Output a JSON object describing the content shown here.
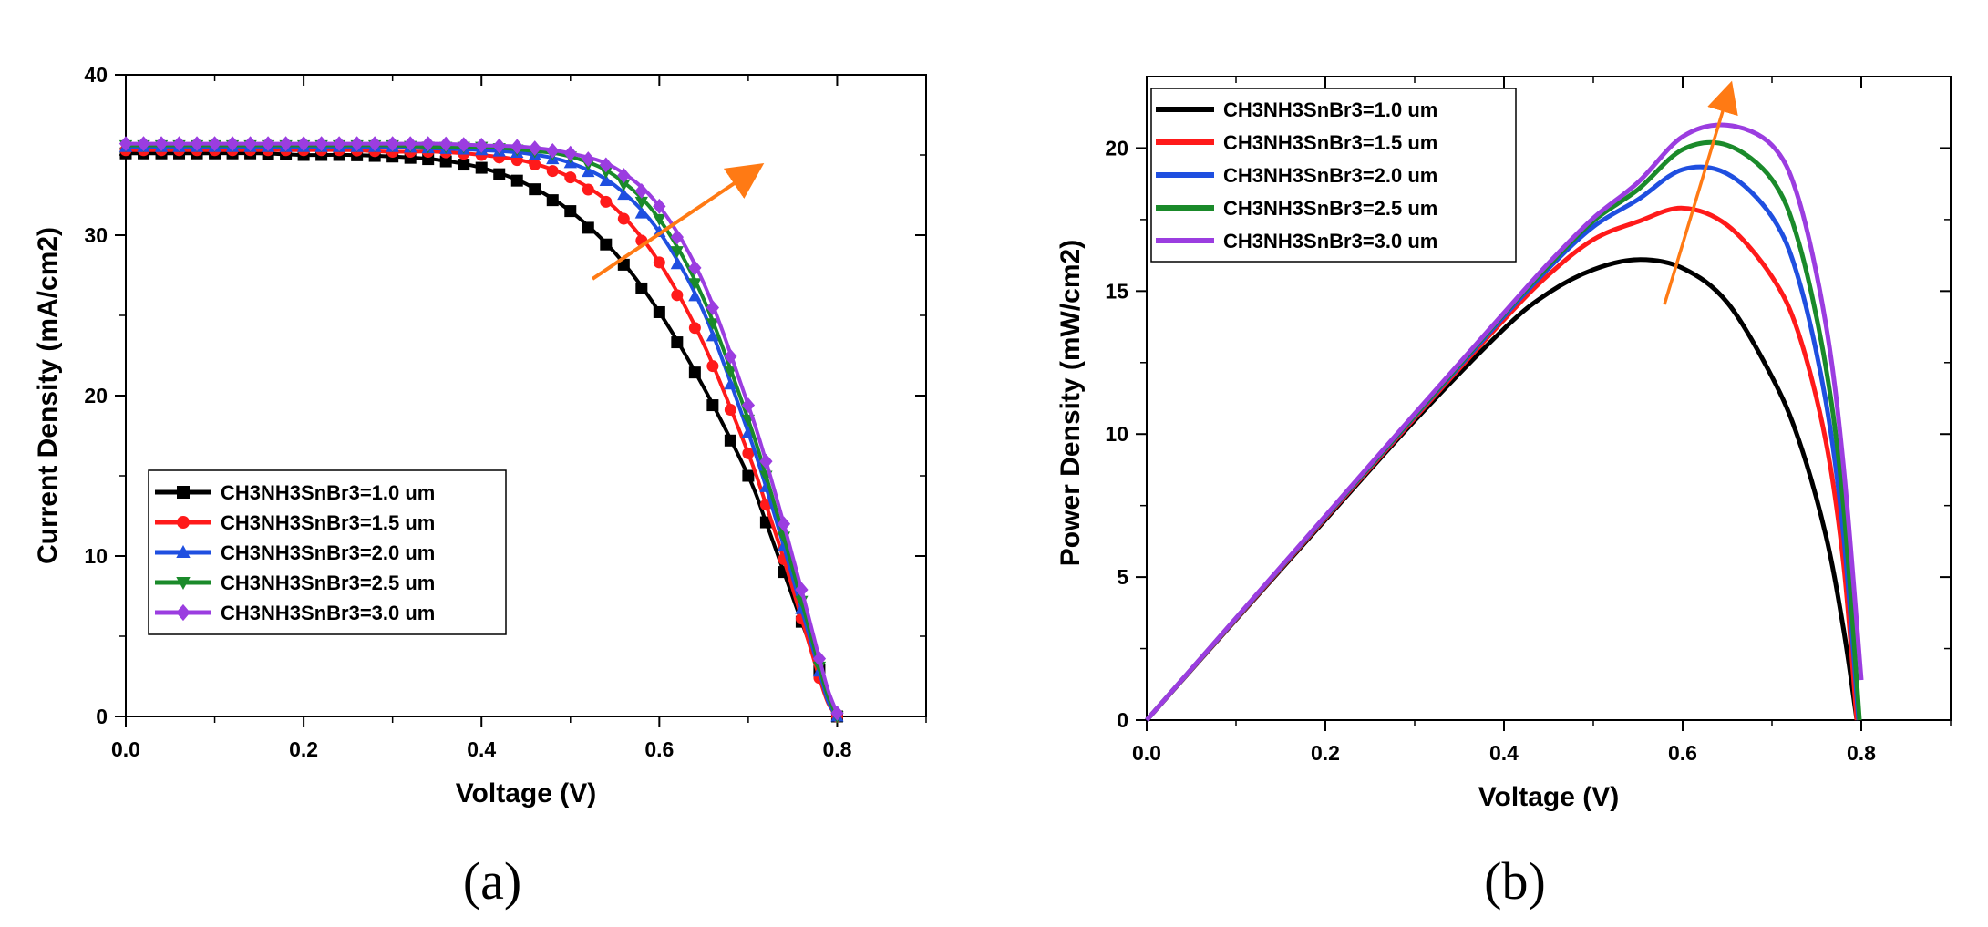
{
  "chart_data": [
    {
      "panel": "(a)",
      "type": "line",
      "xlabel": "Voltage (V)",
      "ylabel": "Current Density (mA/cm2)",
      "xlim": [
        0,
        0.9
      ],
      "ylim": [
        0,
        40
      ],
      "xticks": [
        "0.0",
        "0.2",
        "0.4",
        "0.6",
        "0.8"
      ],
      "yticks": [
        "0",
        "10",
        "20",
        "30",
        "40"
      ],
      "legend_position": "lower-left",
      "annotation": "orange arrow pointing upward-right indicating increasing absorber thickness",
      "x": [
        0.0,
        0.05,
        0.1,
        0.15,
        0.2,
        0.25,
        0.3,
        0.35,
        0.4,
        0.45,
        0.5,
        0.55,
        0.6,
        0.65,
        0.7,
        0.72,
        0.74,
        0.76,
        0.78,
        0.79,
        0.8
      ],
      "series": [
        {
          "name": "CH3NH3SnBr3=1.0 um",
          "color": "#000000",
          "marker": "square",
          "values": [
            35.1,
            35.1,
            35.1,
            35.1,
            35.0,
            35.0,
            34.9,
            34.7,
            34.2,
            33.2,
            31.5,
            28.9,
            25.2,
            20.5,
            15.0,
            12.1,
            9.0,
            5.9,
            2.9,
            1.3,
            0.0
          ]
        },
        {
          "name": "CH3NH3SnBr3=1.5 um",
          "color": "#ff1a1a",
          "marker": "circle",
          "values": [
            35.3,
            35.3,
            35.3,
            35.3,
            35.3,
            35.3,
            35.2,
            35.2,
            35.0,
            34.6,
            33.6,
            31.7,
            28.3,
            23.2,
            16.4,
            13.2,
            9.8,
            6.1,
            2.4,
            0.8,
            0.0
          ]
        },
        {
          "name": "CH3NH3SnBr3=2.0 um",
          "color": "#1f4fe0",
          "marker": "triangle-up",
          "values": [
            35.5,
            35.5,
            35.5,
            35.5,
            35.5,
            35.5,
            35.5,
            35.4,
            35.3,
            35.1,
            34.5,
            33.1,
            30.2,
            25.2,
            17.7,
            14.3,
            10.6,
            6.7,
            2.8,
            0.9,
            0.0
          ]
        },
        {
          "name": "CH3NH3SnBr3=2.5 um",
          "color": "#1a8a2a",
          "marker": "triangle-down",
          "values": [
            35.6,
            35.6,
            35.6,
            35.6,
            35.6,
            35.6,
            35.6,
            35.5,
            35.5,
            35.3,
            34.9,
            33.7,
            31.0,
            26.0,
            18.5,
            15.0,
            11.2,
            7.2,
            3.1,
            1.2,
            0.0
          ]
        },
        {
          "name": "CH3NH3SnBr3=3.0 um",
          "color": "#9b3de0",
          "marker": "diamond",
          "values": [
            35.7,
            35.7,
            35.7,
            35.7,
            35.7,
            35.7,
            35.7,
            35.7,
            35.6,
            35.5,
            35.1,
            34.2,
            31.8,
            27.0,
            19.4,
            15.9,
            12.0,
            7.9,
            3.6,
            1.6,
            0.2
          ]
        }
      ]
    },
    {
      "panel": "(b)",
      "type": "line",
      "xlabel": "Voltage (V)",
      "ylabel": "Power Density (mW/cm2)",
      "xlim": [
        0,
        0.9
      ],
      "ylim": [
        0,
        22.5
      ],
      "xticks": [
        "0.0",
        "0.2",
        "0.4",
        "0.6",
        "0.8"
      ],
      "yticks": [
        "0",
        "5",
        "10",
        "15",
        "20"
      ],
      "legend_position": "top-left",
      "annotation": "orange arrow pointing upward indicating increasing absorber thickness",
      "series": [
        {
          "name": "CH3NH3SnBr3=1.0 um",
          "color": "#000000",
          "x": [
            0.0,
            0.1,
            0.2,
            0.3,
            0.4,
            0.45,
            0.5,
            0.55,
            0.6,
            0.65,
            0.7,
            0.73,
            0.76,
            0.78,
            0.795
          ],
          "values": [
            0.0,
            3.51,
            7.0,
            10.47,
            13.68,
            14.94,
            15.75,
            16.1,
            15.8,
            14.6,
            12.0,
            9.8,
            6.5,
            3.2,
            0.0
          ]
        },
        {
          "name": "CH3NH3SnBr3=1.5 um",
          "color": "#ff1a1a",
          "x": [
            0.0,
            0.1,
            0.2,
            0.3,
            0.4,
            0.45,
            0.5,
            0.55,
            0.6,
            0.65,
            0.7,
            0.73,
            0.76,
            0.78,
            0.795
          ],
          "values": [
            0.0,
            3.53,
            7.06,
            10.56,
            14.0,
            15.57,
            16.8,
            17.43,
            17.9,
            17.3,
            15.5,
            13.5,
            9.8,
            5.5,
            0.0
          ]
        },
        {
          "name": "CH3NH3SnBr3=2.0 um",
          "color": "#1f4fe0",
          "x": [
            0.0,
            0.1,
            0.2,
            0.3,
            0.4,
            0.45,
            0.5,
            0.55,
            0.6,
            0.65,
            0.7,
            0.73,
            0.76,
            0.78,
            0.797
          ],
          "values": [
            0.0,
            3.55,
            7.1,
            10.62,
            14.12,
            15.8,
            17.25,
            18.2,
            19.25,
            19.1,
            17.6,
            15.4,
            11.2,
            6.5,
            0.0
          ]
        },
        {
          "name": "CH3NH3SnBr3=2.5 um",
          "color": "#1a8a2a",
          "x": [
            0.0,
            0.1,
            0.2,
            0.3,
            0.4,
            0.45,
            0.5,
            0.55,
            0.6,
            0.65,
            0.7,
            0.73,
            0.76,
            0.78,
            0.798
          ],
          "values": [
            0.0,
            3.56,
            7.12,
            10.65,
            14.2,
            15.9,
            17.45,
            18.55,
            19.95,
            20.1,
            18.9,
            16.7,
            12.4,
            7.5,
            0.0
          ]
        },
        {
          "name": "CH3NH3SnBr3=3.0 um",
          "color": "#9b3de0",
          "x": [
            0.0,
            0.1,
            0.2,
            0.3,
            0.4,
            0.45,
            0.5,
            0.55,
            0.6,
            0.65,
            0.7,
            0.73,
            0.76,
            0.78,
            0.8
          ],
          "values": [
            0.0,
            3.57,
            7.14,
            10.71,
            14.24,
            15.98,
            17.55,
            18.8,
            20.4,
            20.8,
            20.1,
            18.2,
            13.9,
            8.9,
            1.4
          ]
        }
      ]
    }
  ]
}
